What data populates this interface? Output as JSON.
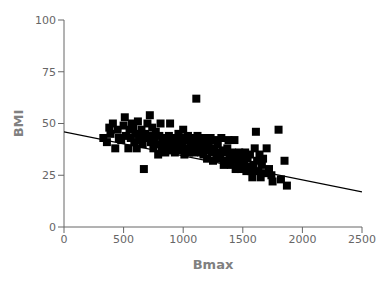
{
  "chart_data": {
    "type": "scatter",
    "xlabel": "Bmax",
    "ylabel": "BMI",
    "xlim": [
      0,
      2500
    ],
    "ylim": [
      0,
      100
    ],
    "xticks": [
      0,
      500,
      1000,
      1500,
      2000,
      2500
    ],
    "yticks": [
      0,
      25,
      50,
      75,
      100
    ],
    "grid": false,
    "series": [
      {
        "type": "scatter",
        "marker": "square",
        "color": "#000000",
        "x": [
          330,
          360,
          380,
          390,
          410,
          430,
          450,
          460,
          480,
          500,
          510,
          520,
          540,
          550,
          560,
          570,
          580,
          590,
          600,
          610,
          620,
          630,
          640,
          650,
          660,
          670,
          680,
          690,
          700,
          710,
          720,
          730,
          740,
          750,
          760,
          770,
          780,
          790,
          800,
          810,
          820,
          830,
          840,
          850,
          860,
          870,
          880,
          890,
          900,
          910,
          920,
          930,
          940,
          950,
          960,
          970,
          980,
          990,
          1000,
          1010,
          1020,
          1030,
          1040,
          1050,
          1060,
          1070,
          1080,
          1090,
          1100,
          1110,
          1120,
          1130,
          1140,
          1150,
          1160,
          1170,
          1180,
          1190,
          1200,
          1210,
          1220,
          1230,
          1240,
          1250,
          1260,
          1270,
          1280,
          1290,
          1300,
          1310,
          1320,
          1330,
          1340,
          1350,
          1360,
          1370,
          1380,
          1390,
          1400,
          1410,
          1420,
          1430,
          1440,
          1450,
          1460,
          1470,
          1480,
          1490,
          1500,
          1510,
          1520,
          1530,
          1540,
          1550,
          1560,
          1570,
          1580,
          1590,
          1600,
          1610,
          1620,
          1630,
          1640,
          1650,
          1660,
          1670,
          1680,
          1700,
          1720,
          1740,
          1750,
          1800,
          1820,
          1850,
          1870
        ],
        "values": [
          43,
          41,
          48,
          45,
          50,
          38,
          47,
          43,
          42,
          49,
          53,
          44,
          38,
          47,
          43,
          50,
          48,
          41,
          45,
          38,
          51,
          44,
          42,
          47,
          40,
          28,
          45,
          43,
          50,
          44,
          54,
          41,
          48,
          38,
          43,
          46,
          40,
          35,
          44,
          50,
          38,
          42,
          40,
          36,
          43,
          37,
          44,
          50,
          40,
          38,
          43,
          36,
          42,
          39,
          45,
          37,
          43,
          40,
          47,
          35,
          42,
          38,
          44,
          36,
          41,
          38,
          43,
          36,
          40,
          62,
          44,
          38,
          42,
          36,
          40,
          35,
          43,
          37,
          33,
          40,
          38,
          43,
          36,
          32,
          38,
          42,
          35,
          40,
          36,
          33,
          43,
          37,
          30,
          36,
          32,
          38,
          42,
          35,
          30,
          36,
          33,
          42,
          28,
          34,
          31,
          36,
          28,
          35,
          32,
          30,
          36,
          27,
          33,
          29,
          35,
          27,
          24,
          30,
          38,
          46,
          32,
          27,
          35,
          24,
          30,
          33,
          26,
          38,
          28,
          25,
          22,
          47,
          23,
          32,
          20
        ]
      },
      {
        "type": "line",
        "color": "#000000",
        "x": [
          0,
          2500
        ],
        "values": [
          46.0,
          17.0
        ]
      }
    ]
  }
}
